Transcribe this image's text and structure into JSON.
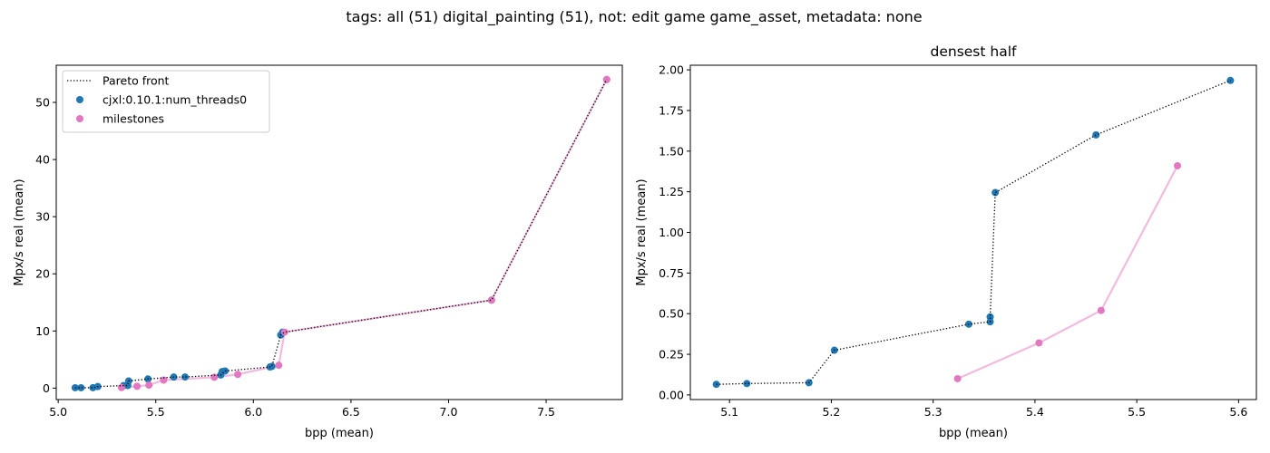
{
  "figure": {
    "suptitle": "tags: all (51) digital_painting (51), not: edit game game_asset, metadata: none"
  },
  "colors": {
    "main_series": "#1f77b4",
    "milestones": "#e377c2",
    "pareto": "#000000"
  },
  "legend_labels": {
    "pareto": "Pareto front",
    "main": "cjxl:0.10.1:num_threads0",
    "milestones": "milestones"
  },
  "chart_data": [
    {
      "type": "scatter",
      "title": "",
      "xlabel": "bpp (mean)",
      "ylabel": "Mpx/s real (mean)",
      "xlim": [
        4.99,
        7.89
      ],
      "ylim": [
        -2.0,
        56.5
      ],
      "xticks": [
        5.0,
        5.5,
        6.0,
        6.5,
        7.0,
        7.5
      ],
      "xtick_labels": [
        "5.0",
        "5.5",
        "6.0",
        "6.5",
        "7.0",
        "7.5"
      ],
      "yticks": [
        0,
        10,
        20,
        30,
        40,
        50
      ],
      "ytick_labels": [
        "0",
        "10",
        "20",
        "30",
        "40",
        "50"
      ],
      "grid": false,
      "legend": "upper left",
      "series": [
        {
          "name": "cjxl:0.10.1:num_threads0",
          "kind": "points",
          "x": [
            5.087,
            5.117,
            5.178,
            5.203,
            5.335,
            5.356,
            5.356,
            5.361,
            5.46,
            5.592,
            5.65,
            5.833,
            5.84,
            5.855,
            6.085,
            6.095,
            6.14,
            6.15,
            7.22,
            7.81
          ],
          "y": [
            0.065,
            0.07,
            0.075,
            0.275,
            0.435,
            0.45,
            0.48,
            1.245,
            1.6,
            1.935,
            1.95,
            2.3,
            2.9,
            3.0,
            3.7,
            3.8,
            9.3,
            9.8,
            15.4,
            54.0
          ]
        },
        {
          "name": "milestones",
          "kind": "line+points",
          "x": [
            5.324,
            5.404,
            5.465,
            5.54,
            5.8,
            5.92,
            6.13,
            6.16,
            7.22,
            7.81
          ],
          "y": [
            0.1,
            0.32,
            0.52,
            1.41,
            1.9,
            2.4,
            4.0,
            9.8,
            15.4,
            54.0
          ]
        },
        {
          "name": "Pareto front",
          "kind": "dotted-line",
          "x": [
            5.087,
            5.117,
            5.178,
            5.203,
            5.335,
            5.356,
            5.356,
            5.361,
            5.46,
            5.592,
            5.65,
            5.833,
            5.855,
            6.085,
            6.095,
            6.14,
            6.16,
            7.22,
            7.81
          ],
          "y": [
            0.065,
            0.07,
            0.075,
            0.275,
            0.435,
            0.45,
            0.48,
            1.245,
            1.6,
            1.935,
            1.95,
            2.3,
            3.0,
            3.7,
            3.8,
            9.3,
            9.8,
            15.4,
            54.0
          ]
        }
      ]
    },
    {
      "type": "scatter",
      "title": "densest half",
      "xlabel": "bpp (mean)",
      "ylabel": "Mpx/s real (mean)",
      "xlim": [
        5.0615,
        5.6175
      ],
      "ylim": [
        -0.0285,
        2.0285
      ],
      "xticks": [
        5.1,
        5.2,
        5.3,
        5.4,
        5.5,
        5.6
      ],
      "xtick_labels": [
        "5.1",
        "5.2",
        "5.3",
        "5.4",
        "5.5",
        "5.6"
      ],
      "yticks": [
        0.0,
        0.25,
        0.5,
        0.75,
        1.0,
        1.25,
        1.5,
        1.75,
        2.0
      ],
      "ytick_labels": [
        "0.00",
        "0.25",
        "0.50",
        "0.75",
        "1.00",
        "1.25",
        "1.50",
        "1.75",
        "2.00"
      ],
      "grid": false,
      "series": [
        {
          "name": "cjxl:0.10.1:num_threads0",
          "kind": "points",
          "x": [
            5.087,
            5.117,
            5.178,
            5.203,
            5.335,
            5.356,
            5.356,
            5.361,
            5.46,
            5.592
          ],
          "y": [
            0.065,
            0.07,
            0.075,
            0.275,
            0.435,
            0.45,
            0.48,
            1.245,
            1.6,
            1.935
          ]
        },
        {
          "name": "milestones",
          "kind": "line+points",
          "x": [
            5.324,
            5.404,
            5.465,
            5.54
          ],
          "y": [
            0.1,
            0.32,
            0.52,
            1.41
          ]
        },
        {
          "name": "Pareto front",
          "kind": "dotted-line",
          "x": [
            5.087,
            5.117,
            5.178,
            5.203,
            5.335,
            5.356,
            5.356,
            5.361,
            5.46,
            5.592
          ],
          "y": [
            0.065,
            0.07,
            0.075,
            0.275,
            0.435,
            0.45,
            0.48,
            1.245,
            1.6,
            1.935
          ]
        }
      ]
    }
  ]
}
